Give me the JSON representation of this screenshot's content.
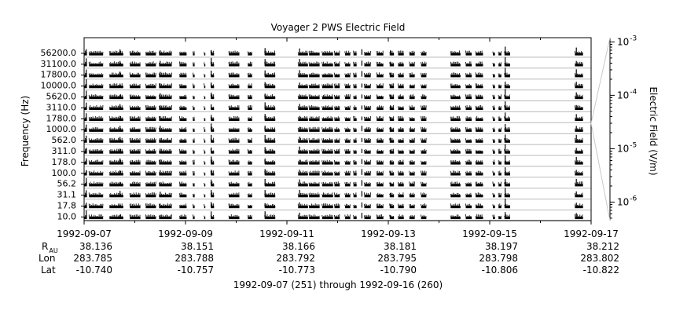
{
  "chart_data": {
    "type": "line",
    "title": "Voyager 2 PWS Electric Field",
    "ylabel": "Frequency (Hz)",
    "colorbar_label": "Electric Field (V/m)",
    "colorbar_ticks": [
      "10",
      "10",
      "10",
      "10"
    ],
    "colorbar_exponents": [
      "-3",
      "-4",
      "-5",
      "-6"
    ],
    "colorbar_range": [
      4.5e-07,
      0.0012
    ],
    "xlim": [
      "1992-09-07",
      "1992-09-17"
    ],
    "channels": [
      "56200.0",
      "31100.0",
      "17800.0",
      "10000.0",
      "5620.0",
      "3110.0",
      "1780.0",
      "1000.0",
      "562.0",
      "311.0",
      "178.0",
      "100.0",
      "56.2",
      "31.1",
      "17.8",
      "10.0"
    ],
    "x_ticks": [
      "1992-09-07",
      "1992-09-09",
      "1992-09-11",
      "1992-09-13",
      "1992-09-15",
      "1992-09-17"
    ],
    "ephemeris_labels": {
      "r": "R",
      "r_sub": "AU",
      "lon": "Lon",
      "lat": "Lat"
    },
    "ephemeris": {
      "r_au": [
        "38.136",
        "38.151",
        "38.166",
        "38.181",
        "38.197",
        "38.212"
      ],
      "lon": [
        "283.785",
        "283.788",
        "283.792",
        "283.795",
        "283.798",
        "283.802"
      ],
      "lat": [
        "-10.740",
        "-10.757",
        "-10.773",
        "-10.790",
        "-10.806",
        "-10.822"
      ]
    },
    "data_segments": [
      [
        "1992-09-07T00:00",
        "1992-09-07T01:20"
      ],
      [
        "1992-09-07T02:20",
        "1992-09-07T09:00"
      ],
      [
        "1992-09-07T12:00",
        "1992-09-07T18:30"
      ],
      [
        "1992-09-07T21:40",
        "1992-09-08T02:40"
      ],
      [
        "1992-09-08T05:10",
        "1992-09-08T10:00"
      ],
      [
        "1992-09-08T11:30",
        "1992-09-08T17:30"
      ],
      [
        "1992-09-08T21:10",
        "1992-09-09T00:30"
      ],
      [
        "1992-09-09T03:30",
        "1992-09-09T04:20"
      ],
      [
        "1992-09-09T08:50",
        "1992-09-09T09:20"
      ],
      [
        "1992-09-09T12:00",
        "1992-09-09T13:30"
      ],
      [
        "1992-09-09T20:30",
        "1992-09-10T01:30"
      ],
      [
        "1992-09-10T05:30",
        "1992-09-10T07:30"
      ],
      [
        "1992-09-10T13:30",
        "1992-09-10T18:30"
      ],
      [
        "1992-09-11T05:20",
        "1992-09-11T10:00"
      ],
      [
        "1992-09-11T10:30",
        "1992-09-11T15:30"
      ],
      [
        "1992-09-11T16:40",
        "1992-09-11T21:50"
      ],
      [
        "1992-09-11T22:30",
        "1992-09-12T01:00"
      ],
      [
        "1992-09-12T03:30",
        "1992-09-12T06:00"
      ],
      [
        "1992-09-12T07:30",
        "1992-09-12T09:00"
      ],
      [
        "1992-09-12T12:40",
        "1992-09-12T15:40"
      ],
      [
        "1992-09-12T18:30",
        "1992-09-12T21:40"
      ],
      [
        "1992-09-13T00:40",
        "1992-09-13T02:40"
      ],
      [
        "1992-09-13T04:40",
        "1992-09-13T07:20"
      ],
      [
        "1992-09-13T10:00",
        "1992-09-13T12:30"
      ],
      [
        "1992-09-13T15:30",
        "1992-09-13T18:00"
      ],
      [
        "1992-09-14T05:30",
        "1992-09-14T10:10"
      ],
      [
        "1992-09-14T12:40",
        "1992-09-14T15:30"
      ],
      [
        "1992-09-14T17:20",
        "1992-09-14T20:50"
      ],
      [
        "1992-09-15T01:30",
        "1992-09-15T02:30"
      ],
      [
        "1992-09-15T04:10",
        "1992-09-15T05:30"
      ],
      [
        "1992-09-15T07:00",
        "1992-09-15T09:40"
      ],
      [
        "1992-09-16T16:20",
        "1992-09-16T20:10"
      ]
    ],
    "bursts": [
      [
        "1992-09-07T01:00",
        6
      ],
      [
        "1992-09-07T17:00",
        4
      ],
      [
        "1992-09-08T12:00",
        3.5
      ],
      [
        "1992-09-09T12:10",
        5.5
      ],
      [
        "1992-09-10T13:40",
        5
      ],
      [
        "1992-09-11T06:00",
        4.5
      ],
      [
        "1992-09-12T11:30",
        3.5
      ],
      [
        "1992-09-13T01:00",
        2.5
      ],
      [
        "1992-09-15T07:20",
        7
      ],
      [
        "1992-09-16T17:00",
        5
      ]
    ],
    "footer": "1992-09-07 (251) through 1992-09-16 (260)"
  }
}
